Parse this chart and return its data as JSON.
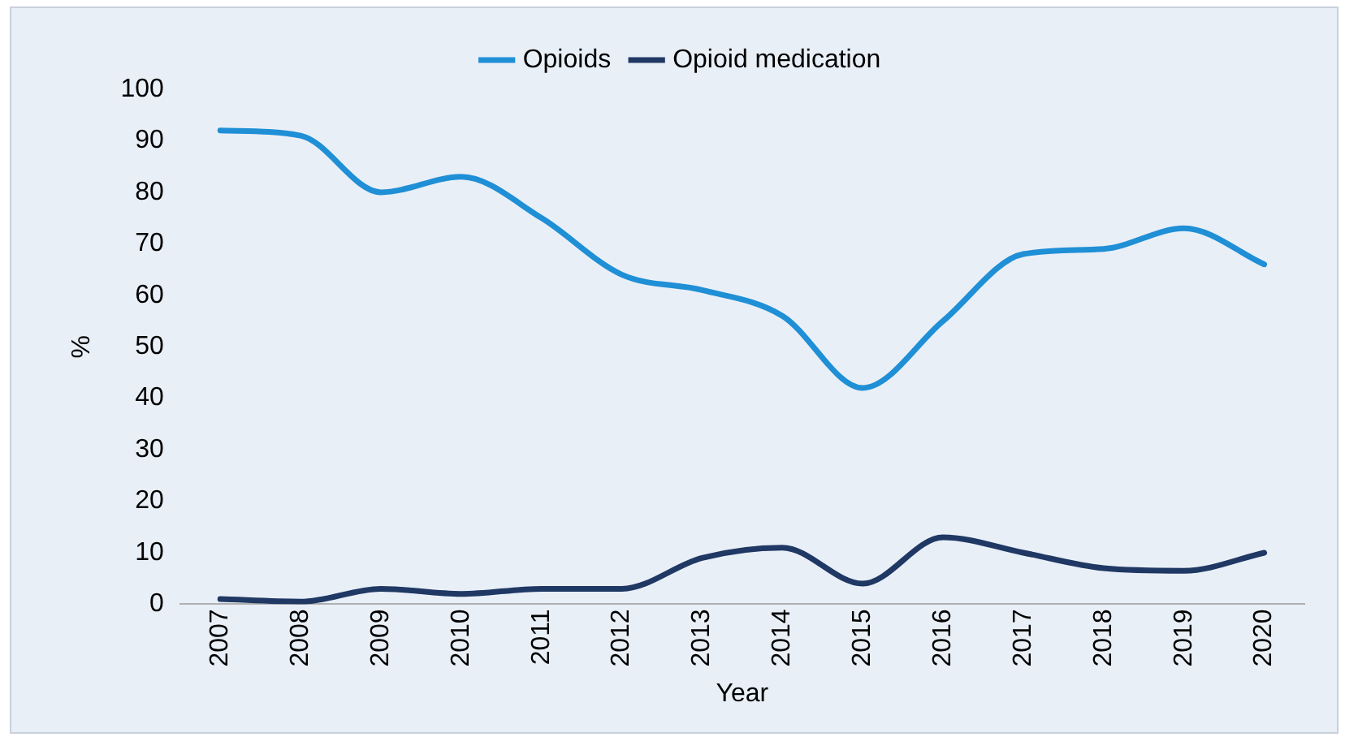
{
  "chart_data": {
    "type": "line",
    "xlabel": "Year",
    "ylabel": "%",
    "categories": [
      "2007",
      "2008",
      "2009",
      "2010",
      "2011",
      "2012",
      "2013",
      "2014",
      "2015",
      "2016",
      "2017",
      "2018",
      "2019",
      "2020"
    ],
    "series": [
      {
        "name": "Opioids",
        "color": "#1f8fd6",
        "values": [
          92,
          91,
          80,
          83,
          75,
          64,
          61,
          56,
          42,
          55,
          68,
          69,
          73,
          66
        ]
      },
      {
        "name": "Opioid medication",
        "color": "#1f3864",
        "values": [
          1,
          0.5,
          3,
          2,
          3,
          3,
          9,
          11,
          4,
          13,
          10,
          7,
          6.5,
          10
        ]
      }
    ],
    "ylim": [
      0,
      100
    ],
    "yticks": [
      0,
      10,
      20,
      30,
      40,
      50,
      60,
      70,
      80,
      90,
      100
    ],
    "grid": false,
    "legend": "top",
    "marker": "none",
    "line_style": "solid"
  }
}
